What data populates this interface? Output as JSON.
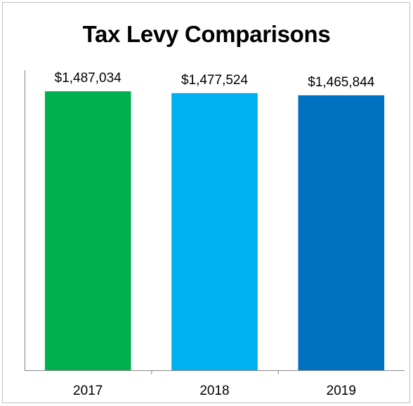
{
  "chart_data": {
    "type": "bar",
    "title": "Tax Levy Comparisons",
    "categories": [
      "2017",
      "2018",
      "2019"
    ],
    "values": [
      1487034,
      1477524,
      1465844
    ],
    "data_labels": [
      "$1,487,034",
      "$1,477,524",
      "$1,465,844"
    ],
    "colors": [
      "#00b050",
      "#00b0f0",
      "#0070c0"
    ],
    "ylim": [
      0,
      1600000
    ],
    "xlabel": "",
    "ylabel": "",
    "grid": false,
    "legend": "none"
  }
}
